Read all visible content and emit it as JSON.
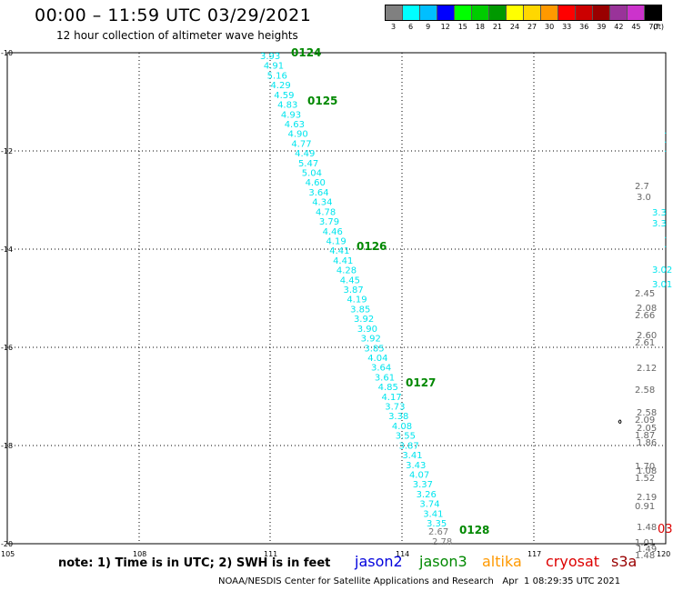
{
  "header": {
    "title": "00:00 – 11:59 UTC 03/29/2021",
    "subtitle": "12 hour collection of altimeter wave heights"
  },
  "color_scale": {
    "labels": [
      "3",
      "6",
      "9",
      "12",
      "15",
      "18",
      "21",
      "24",
      "27",
      "30",
      "33",
      "36",
      "39",
      "42",
      "45",
      "70"
    ],
    "unit": "(ft)",
    "colors": [
      "#808080",
      "#00ffff",
      "#00bfff",
      "#0000ff",
      "#00ff00",
      "#00cc00",
      "#009900",
      "#ffff00",
      "#ffd700",
      "#ff9900",
      "#ff0000",
      "#cc0000",
      "#990000",
      "#993399",
      "#cc33cc",
      "#000000"
    ]
  },
  "map": {
    "lon_ticks": [
      "105",
      "108",
      "111",
      "114",
      "117",
      "120"
    ],
    "lat_ticks": [
      "-10",
      "-12",
      "-14",
      "-16",
      "-18",
      "-20"
    ],
    "cyan_track": [
      "3.93",
      "4.91",
      "5.16",
      "4.29",
      "4.59",
      "4.83",
      "4.93",
      "4.63",
      "4.90",
      "4.77",
      "4.49",
      "5.47",
      "5.04",
      "4.60",
      "3.64",
      "4.34",
      "4.78",
      "3.79",
      "4.46",
      "4.19",
      "4.41",
      "4.41",
      "4.28",
      "4.45",
      "3.87",
      "4.19",
      "3.85",
      "3.92",
      "3.90",
      "3.92",
      "3.85",
      "4.04",
      "3.64",
      "3.61",
      "4.85",
      "4.17",
      "3.73",
      "3.38",
      "4.08",
      "3.55",
      "3.87",
      "3.41",
      "3.43",
      "4.07",
      "3.37",
      "3.26",
      "3.74",
      "3.41",
      "3.35"
    ],
    "gray_track_end": [
      "2.67",
      "2.78"
    ],
    "time_labels": [
      "0124",
      "0125",
      "0126",
      "0127",
      "0128"
    ],
    "right_gray": [
      "2.7",
      "3.0",
      "2.45",
      "2.08",
      "2.66",
      "2.60",
      "2.61",
      "2.12",
      "2.58",
      "2.58",
      "2.09",
      "2.05",
      "1.87",
      "1.86",
      "1.70",
      "1.08",
      "1.52",
      "2.19",
      "0.91",
      "1.48",
      "1.01",
      "1.49",
      "1.48"
    ],
    "right_cyan": [
      "3.3",
      "3.3",
      "3.02",
      "3.01"
    ],
    "right_red": "03"
  },
  "footer": {
    "note": "note:  1) Time is in UTC;  2) SWH is in feet",
    "satellites": [
      {
        "name": "jason2",
        "color": "#0000dd"
      },
      {
        "name": "jason3",
        "color": "#008800"
      },
      {
        "name": "altika",
        "color": "#ff9900"
      },
      {
        "name": "cryosat",
        "color": "#dd0000"
      },
      {
        "name": "s3a",
        "color": "#990000"
      }
    ],
    "credit": "NOAA/NESDIS Center for Satellite Applications and Research   Apr  1 08:29:35 UTC 2021"
  }
}
